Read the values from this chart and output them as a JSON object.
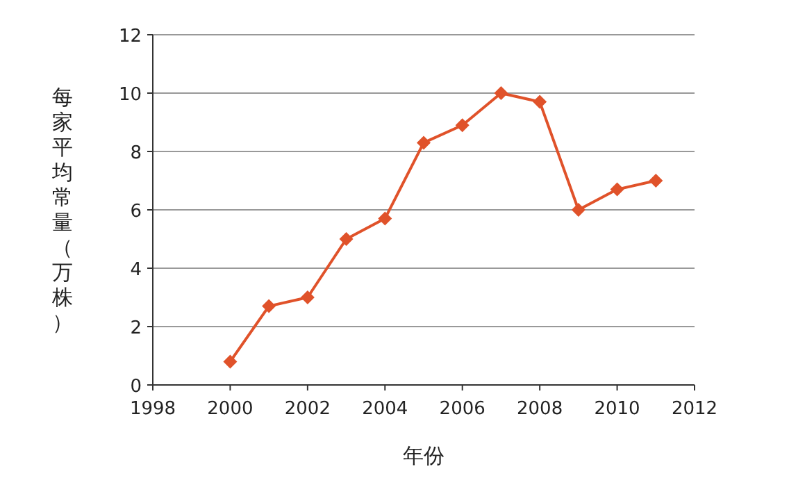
{
  "chart_data": {
    "type": "line",
    "xlabel": "年份",
    "ylabel": "每家平均常量（万株）",
    "x": [
      2000,
      2001,
      2002,
      2003,
      2004,
      2005,
      2006,
      2007,
      2008,
      2009,
      2010,
      2011
    ],
    "series": [
      {
        "color": "#e0522a",
        "values": [
          0.8,
          2.7,
          3.0,
          5.0,
          5.7,
          8.3,
          8.9,
          10.0,
          9.7,
          6.0,
          6.7,
          7.0
        ]
      }
    ],
    "xlim": [
      1998,
      2012
    ],
    "xticks": [
      1998,
      2000,
      2002,
      2004,
      2006,
      2008,
      2010,
      2012
    ],
    "ylim": [
      0,
      12
    ],
    "yticks": [
      0,
      2,
      4,
      6,
      8,
      10,
      12
    ],
    "grid": "y",
    "marker": "diamond",
    "line_style": "solid"
  }
}
